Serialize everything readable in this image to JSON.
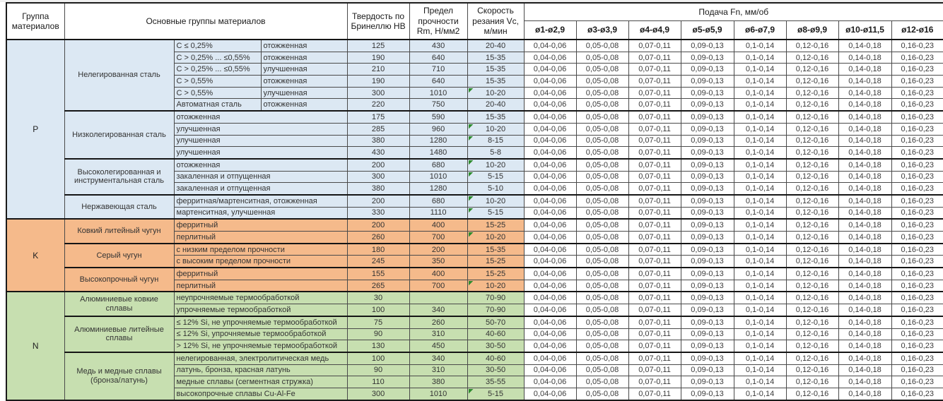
{
  "table": {
    "header": {
      "group": "Группа материалов",
      "materials": "Основные группы материалов",
      "hardness": "Твердость по Бринеллю HB",
      "strength": "Предел прочности Rm, Н/мм2",
      "speed": "Скорость резания Vc, м/мин",
      "feed": "Подача Fn, мм/об",
      "diameters": [
        "ø1-ø2,9",
        "ø3-ø3,9",
        "ø4-ø4,9",
        "ø5-ø5,9",
        "ø6-ø7,9",
        "ø8-ø9,9",
        "ø10-ø11,5",
        "ø12-ø16"
      ]
    },
    "feed_values": [
      "0,04-0,06",
      "0,05-0,08",
      "0,07-0,11",
      "0,09-0,13",
      "0,1-0,14",
      "0,12-0,16",
      "0,14-0,18",
      "0,16-0,23"
    ],
    "groups": [
      {
        "code": "P",
        "color": "#dce8f3",
        "subgroups": [
          {
            "name": "Нелегированная сталь",
            "rows": [
              {
                "spec": "C ≤ 0,25%",
                "cond": "отожженная",
                "hb": "125",
                "rm": "430",
                "vc": "20-40",
                "flag": false
              },
              {
                "spec": "C > 0,25% ... ≤0,55%",
                "cond": "отожженная",
                "hb": "190",
                "rm": "640",
                "vc": "15-35",
                "flag": false
              },
              {
                "spec": "C > 0,25% ... ≤0,55%",
                "cond": "улучшенная",
                "hb": "210",
                "rm": "710",
                "vc": "15-35",
                "flag": false
              },
              {
                "spec": "C > 0,55%",
                "cond": "отожженная",
                "hb": "190",
                "rm": "640",
                "vc": "15-35",
                "flag": false
              },
              {
                "spec": "C > 0,55%",
                "cond": "улучшенная",
                "hb": "300",
                "rm": "1010",
                "vc": "10-20",
                "flag": true
              },
              {
                "spec": "Автоматная сталь",
                "cond": "отожженная",
                "hb": "220",
                "rm": "750",
                "vc": "20-40",
                "flag": false
              }
            ]
          },
          {
            "name": "Низколегированная сталь",
            "rows": [
              {
                "spec": "отожженная",
                "cond": null,
                "hb": "175",
                "rm": "590",
                "vc": "15-35",
                "flag": false
              },
              {
                "spec": "улучшенная",
                "cond": null,
                "hb": "285",
                "rm": "960",
                "vc": "10-20",
                "flag": true
              },
              {
                "spec": "улучшенная",
                "cond": null,
                "hb": "380",
                "rm": "1280",
                "vc": "8-15",
                "flag": true
              },
              {
                "spec": "улучшенная",
                "cond": null,
                "hb": "430",
                "rm": "1480",
                "vc": "5-8",
                "flag": false
              }
            ]
          },
          {
            "name": "Высоколегированная и инструментальная сталь",
            "rows": [
              {
                "spec": "отожженная",
                "cond": null,
                "hb": "200",
                "rm": "680",
                "vc": "10-20",
                "flag": true
              },
              {
                "spec": "закаленная и отпущенная",
                "cond": null,
                "hb": "300",
                "rm": "1010",
                "vc": "5-15",
                "flag": true
              },
              {
                "spec": "закаленная и отпущенная",
                "cond": null,
                "hb": "380",
                "rm": "1280",
                "vc": "5-10",
                "flag": false
              }
            ]
          },
          {
            "name": "Нержавеющая сталь",
            "rows": [
              {
                "spec": "ферритная/мартенситная, отожженная",
                "cond": null,
                "hb": "200",
                "rm": "680",
                "vc": "10-20",
                "flag": true
              },
              {
                "spec": "мартенситная, улучшенная",
                "cond": null,
                "hb": "330",
                "rm": "1110",
                "vc": "5-15",
                "flag": true
              }
            ]
          }
        ]
      },
      {
        "code": "K",
        "color": "#f5ba8b",
        "subgroups": [
          {
            "name": "Ковкий литейный чугун",
            "rows": [
              {
                "spec": "ферритный",
                "cond": null,
                "hb": "200",
                "rm": "400",
                "vc": "15-25",
                "flag": false
              },
              {
                "spec": "перлитный",
                "cond": null,
                "hb": "260",
                "rm": "700",
                "vc": "10-20",
                "flag": true
              }
            ]
          },
          {
            "name": "Серый чугун",
            "rows": [
              {
                "spec": "с низким пределом прочности",
                "cond": null,
                "hb": "180",
                "rm": "200",
                "vc": "15-35",
                "flag": false
              },
              {
                "spec": "с высоким пределом прочности",
                "cond": null,
                "hb": "245",
                "rm": "350",
                "vc": "15-25",
                "flag": false
              }
            ]
          },
          {
            "name": "Высокопрочный чугун",
            "rows": [
              {
                "spec": "ферритный",
                "cond": null,
                "hb": "155",
                "rm": "400",
                "vc": "15-25",
                "flag": false
              },
              {
                "spec": "перлитный",
                "cond": null,
                "hb": "265",
                "rm": "700",
                "vc": "10-20",
                "flag": true
              }
            ]
          }
        ]
      },
      {
        "code": "N",
        "color": "#c7dfb0",
        "subgroups": [
          {
            "name": "Алюминиевые ковкие сплавы",
            "rows": [
              {
                "spec": "неупрочняемые термообработкой",
                "cond": null,
                "hb": "30",
                "rm": "",
                "vc": "70-90",
                "flag": false
              },
              {
                "spec": "упрочняемые термообработкой",
                "cond": null,
                "hb": "100",
                "rm": "340",
                "vc": "70-90",
                "flag": false
              }
            ]
          },
          {
            "name": "Алюминиевые литейные сплавы",
            "rows": [
              {
                "spec": "≤ 12% Si, не упрочняемые термообработкой",
                "cond": null,
                "hb": "75",
                "rm": "260",
                "vc": "50-70",
                "flag": false
              },
              {
                "spec": "≤ 12% Si, упрочняемые термообработкой",
                "cond": null,
                "hb": "90",
                "rm": "310",
                "vc": "40-60",
                "flag": false
              },
              {
                "spec": "> 12% Si, не упрочняемые термообработкой",
                "cond": null,
                "hb": "130",
                "rm": "450",
                "vc": "30-50",
                "flag": false
              }
            ]
          },
          {
            "name": "Медь и медные сплавы (бронза/латунь)",
            "rows": [
              {
                "spec": "нелегированная, электролитическая медь",
                "cond": null,
                "hb": "100",
                "rm": "340",
                "vc": "40-60",
                "flag": false
              },
              {
                "spec": "латунь, бронза, красная латунь",
                "cond": null,
                "hb": "90",
                "rm": "310",
                "vc": "30-50",
                "flag": false
              },
              {
                "spec": "медные сплавы (сегментная стружка)",
                "cond": null,
                "hb": "110",
                "rm": "380",
                "vc": "35-55",
                "flag": false
              },
              {
                "spec": "высокопрочные сплавы Cu-Al-Fe",
                "cond": null,
                "hb": "300",
                "rm": "1010",
                "vc": "5-15",
                "flag": true
              }
            ]
          }
        ]
      }
    ]
  },
  "colors": {
    "group_p_fill": "#dce8f3",
    "group_k_fill": "#f5ba8b",
    "group_n_fill": "#c7dfb0",
    "flag_marker": "#2e8b2e",
    "grid_line": "#4a4a4a"
  }
}
